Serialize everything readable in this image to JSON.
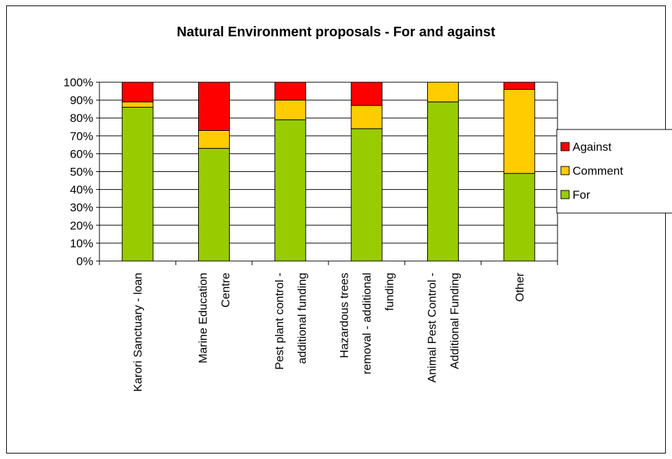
{
  "chart_data": {
    "type": "bar",
    "stacked": true,
    "title": "Natural Environment proposals - For and against",
    "xlabel": "",
    "ylabel": "",
    "ylim": [
      0,
      100
    ],
    "yticks": [
      "0%",
      "10%",
      "20%",
      "30%",
      "40%",
      "50%",
      "60%",
      "70%",
      "80%",
      "90%",
      "100%"
    ],
    "categories": [
      [
        "Karori Sanctuary - loan"
      ],
      [
        "Marine Education",
        "Centre"
      ],
      [
        "Pest plant control -",
        "additional funding"
      ],
      [
        "Hazardous trees",
        "removal - additional",
        "funding"
      ],
      [
        "Animal Pest Control -",
        "Additional Funding"
      ],
      [
        "Other"
      ]
    ],
    "series": [
      {
        "name": "For",
        "color": "#99cc00",
        "values": [
          86,
          63,
          79,
          74,
          89,
          49
        ]
      },
      {
        "name": "Comment",
        "color": "#ffcc00",
        "values": [
          3,
          10,
          11,
          13,
          11,
          47
        ]
      },
      {
        "name": "Against",
        "color": "#ff0000",
        "values": [
          11,
          27,
          10,
          13,
          0,
          4
        ]
      }
    ],
    "legend": {
      "placement": "right",
      "order": [
        "Against",
        "Comment",
        "For"
      ]
    },
    "grid": true
  }
}
